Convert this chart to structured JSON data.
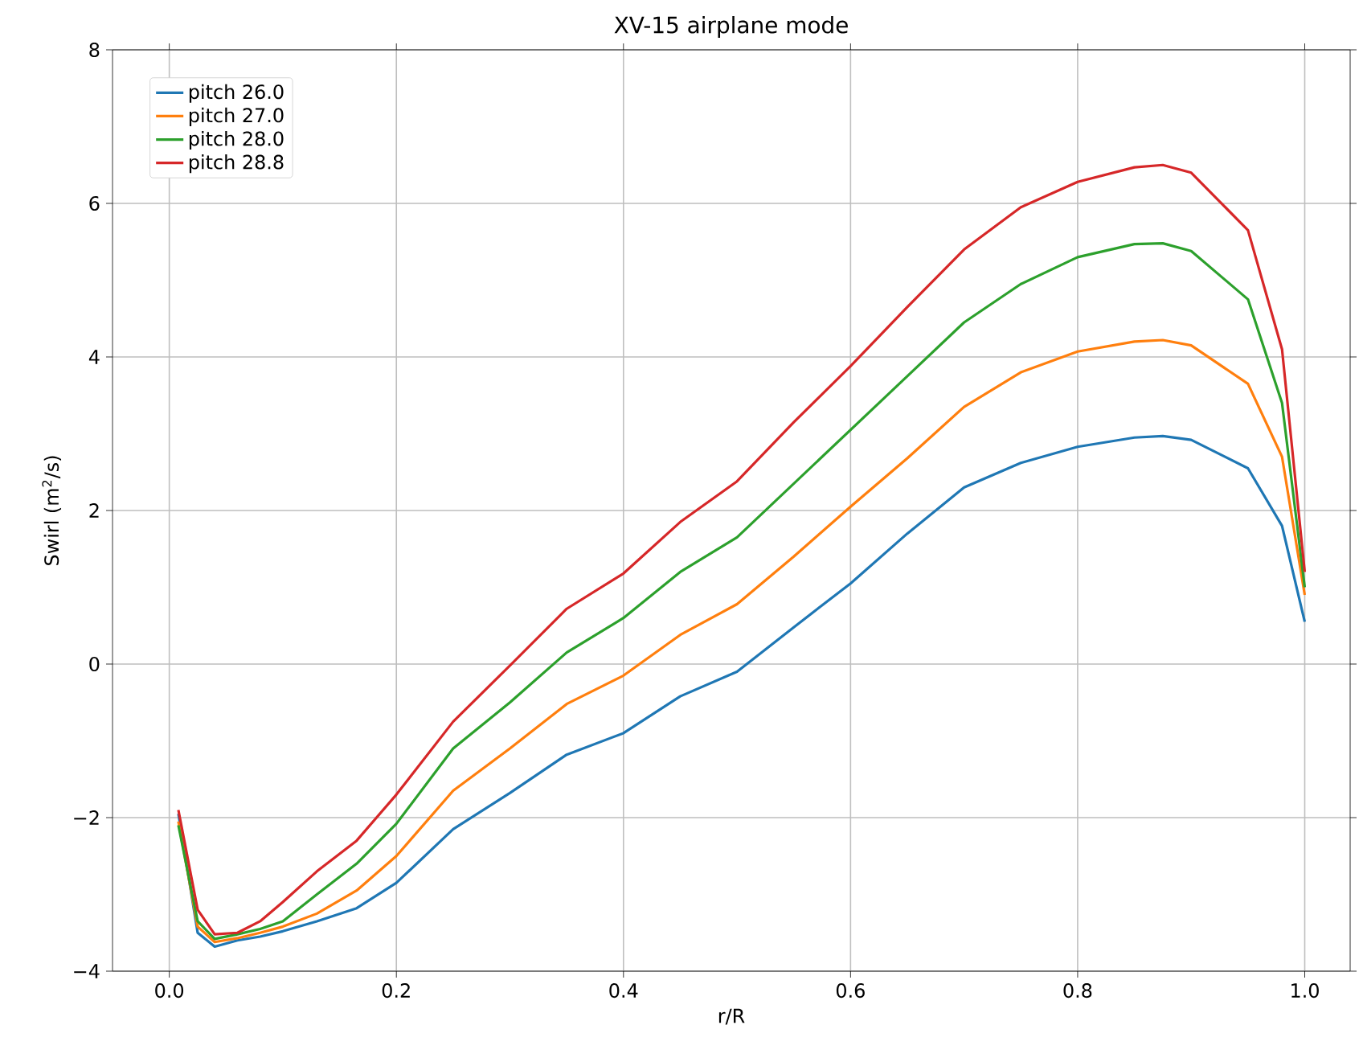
{
  "chart_data": {
    "type": "line",
    "title": "XV-15 airplane mode",
    "xlabel": "r/R",
    "ylabel": "Swirl (m$^{2}$/s)",
    "x": [
      0.008,
      0.025,
      0.04,
      0.06,
      0.08,
      0.1,
      0.13,
      0.165,
      0.2,
      0.25,
      0.3,
      0.35,
      0.4,
      0.45,
      0.5,
      0.55,
      0.6,
      0.65,
      0.7,
      0.75,
      0.8,
      0.85,
      0.875,
      0.9,
      0.95,
      0.98,
      1.0
    ],
    "series": [
      {
        "name": "pitch 26.0",
        "color": "#1f77b4",
        "values": [
          -1.95,
          -3.5,
          -3.68,
          -3.6,
          -3.55,
          -3.48,
          -3.35,
          -3.18,
          -2.85,
          -2.15,
          -1.68,
          -1.18,
          -0.9,
          -0.42,
          -0.1,
          0.48,
          1.05,
          1.7,
          2.3,
          2.62,
          2.83,
          2.95,
          2.97,
          2.92,
          2.55,
          1.8,
          0.55
        ]
      },
      {
        "name": "pitch 27.0",
        "color": "#ff7f0e",
        "values": [
          -2.05,
          -3.42,
          -3.62,
          -3.57,
          -3.5,
          -3.42,
          -3.25,
          -2.95,
          -2.5,
          -1.65,
          -1.1,
          -0.52,
          -0.15,
          0.38,
          0.78,
          1.4,
          2.05,
          2.68,
          3.35,
          3.8,
          4.07,
          4.2,
          4.22,
          4.15,
          3.65,
          2.7,
          0.9
        ]
      },
      {
        "name": "pitch 28.0",
        "color": "#2ca02c",
        "values": [
          -2.1,
          -3.35,
          -3.58,
          -3.52,
          -3.45,
          -3.35,
          -3.0,
          -2.6,
          -2.08,
          -1.1,
          -0.5,
          0.15,
          0.6,
          1.2,
          1.65,
          2.35,
          3.05,
          3.75,
          4.45,
          4.95,
          5.3,
          5.47,
          5.48,
          5.38,
          4.75,
          3.4,
          1.0
        ]
      },
      {
        "name": "pitch 28.8",
        "color": "#d62728",
        "values": [
          -1.9,
          -3.2,
          -3.52,
          -3.5,
          -3.35,
          -3.1,
          -2.7,
          -2.3,
          -1.7,
          -0.75,
          -0.02,
          0.72,
          1.18,
          1.85,
          2.38,
          3.15,
          3.88,
          4.65,
          5.4,
          5.95,
          6.28,
          6.47,
          6.5,
          6.4,
          5.65,
          4.1,
          1.2
        ]
      }
    ],
    "xlim": [
      -0.05,
      1.04
    ],
    "ylim": [
      -4,
      8
    ],
    "xticks": [
      {
        "value": 0,
        "label": "0.0"
      },
      {
        "value": 0.2,
        "label": "0.2"
      },
      {
        "value": 0.4,
        "label": "0.4"
      },
      {
        "value": 0.6,
        "label": "0.6"
      },
      {
        "value": 0.8,
        "label": "0.8"
      },
      {
        "value": 1.0,
        "label": "1.0"
      }
    ],
    "yticks": [
      {
        "value": -4,
        "label": "−4"
      },
      {
        "value": -2,
        "label": "−2"
      },
      0,
      2,
      4,
      6,
      8
    ],
    "grid": true,
    "legend": "top left",
    "marker": "none",
    "line_style": "solid"
  }
}
